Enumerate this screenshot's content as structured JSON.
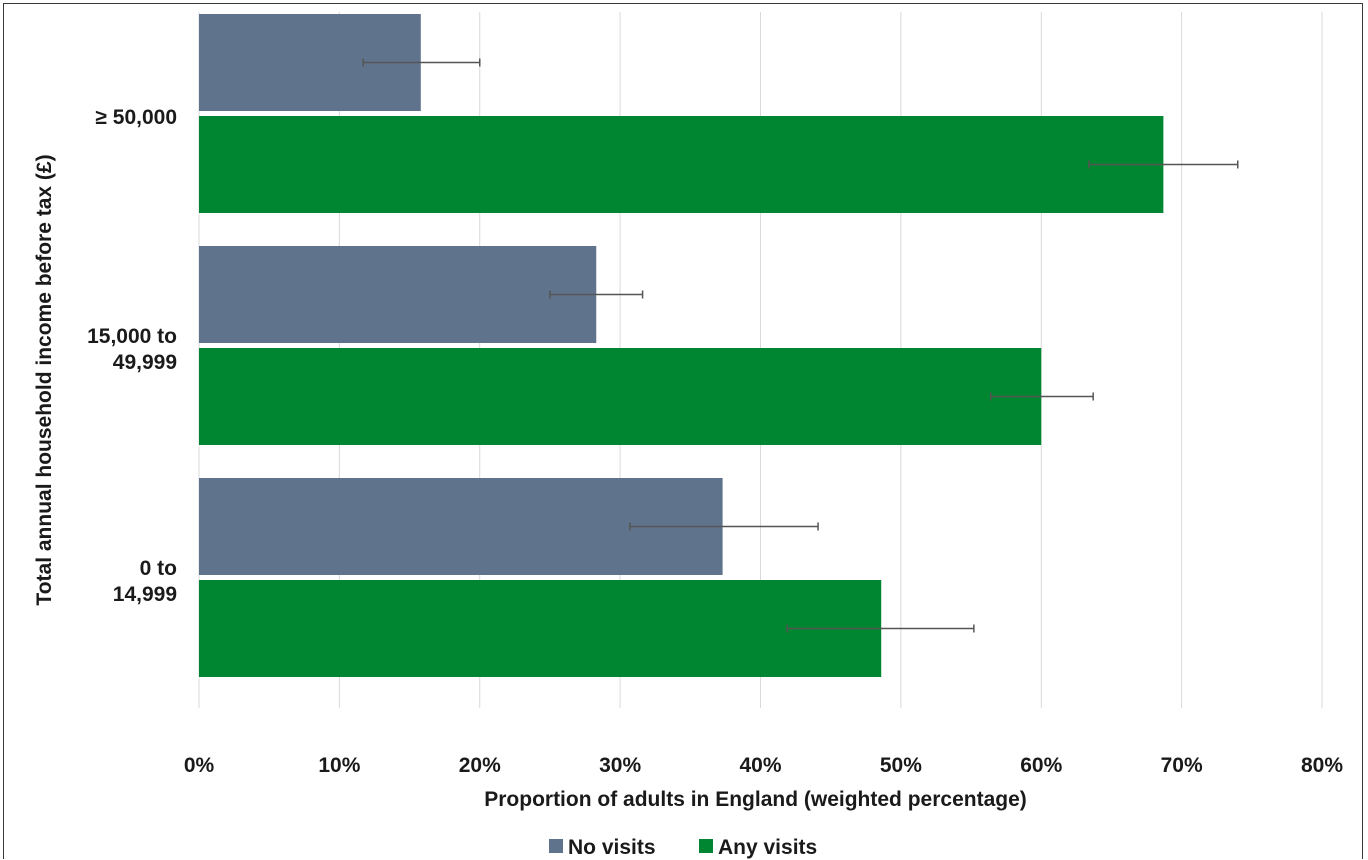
{
  "chart_data": {
    "type": "bar",
    "orientation": "horizontal",
    "categories": [
      "≥ 50,000",
      "15,000 to 49,999",
      "0 to 14,999"
    ],
    "category_label_lines": [
      [
        "≥ 50,000"
      ],
      [
        "15,000 to",
        "49,999"
      ],
      [
        "0 to",
        "14,999"
      ]
    ],
    "series": [
      {
        "name": "No visits",
        "color": "#5f748c",
        "values": [
          15.8,
          28.3,
          37.3
        ],
        "error_low": [
          11.7,
          25.0,
          30.7
        ],
        "error_high": [
          20.0,
          31.6,
          44.1
        ]
      },
      {
        "name": "Any visits",
        "color": "#008631",
        "values": [
          68.7,
          60.0,
          48.6
        ],
        "error_low": [
          63.4,
          56.4,
          41.9
        ],
        "error_high": [
          74.0,
          63.7,
          55.2
        ]
      }
    ],
    "xlabel": "Proportion of adults in England (weighted percentage)",
    "ylabel": "Total annual household income before tax (£)",
    "xlim": [
      0,
      80
    ],
    "xticks": [
      0,
      10,
      20,
      30,
      40,
      50,
      60,
      70,
      80
    ],
    "xtick_labels": [
      "0%",
      "10%",
      "20%",
      "30%",
      "40%",
      "50%",
      "60%",
      "70%",
      "80%"
    ],
    "grid": "vertical",
    "legend": "bottom"
  }
}
